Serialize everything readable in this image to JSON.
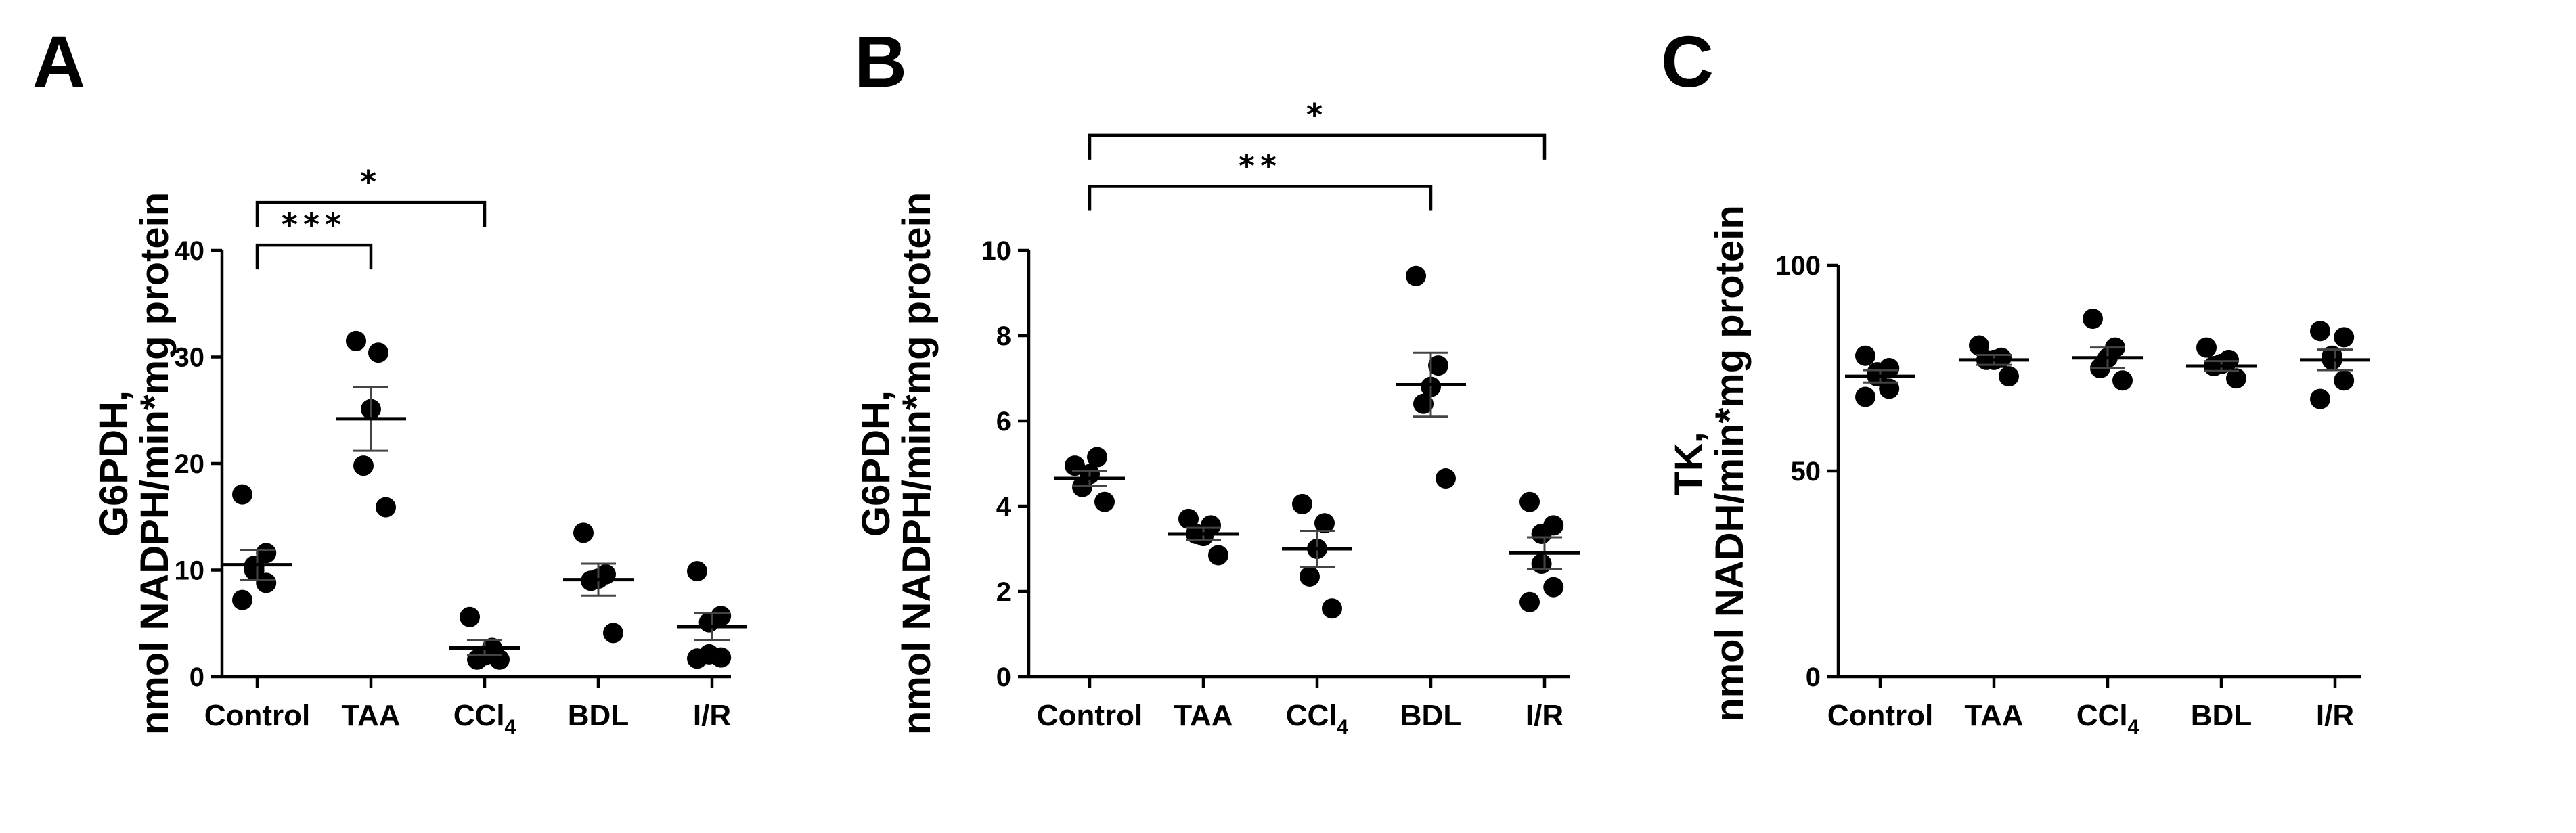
{
  "chart_data": [
    {
      "type": "scatter",
      "panel": "A",
      "ylabel_line1": "G6PDH,",
      "ylabel_line2": "nmol NADPH/min*mg protein",
      "ylim": [
        0,
        40
      ],
      "yticks": [
        0,
        10,
        20,
        30,
        40
      ],
      "categories": [
        {
          "name": "Control",
          "sub": ""
        },
        {
          "name": "TAA",
          "sub": ""
        },
        {
          "name": "CCl",
          "sub": "4"
        },
        {
          "name": "BDL",
          "sub": ""
        },
        {
          "name": "I/R",
          "sub": ""
        }
      ],
      "groups": [
        {
          "points": [
            17.1,
            11.6,
            10.4,
            10.0,
            8.8,
            7.2
          ],
          "mean": 10.5,
          "sem": 1.4
        },
        {
          "points": [
            31.5,
            30.4,
            25.1,
            19.8,
            15.9
          ],
          "mean": 24.2,
          "sem": 3.0
        },
        {
          "points": [
            5.6,
            2.7,
            2.0,
            1.6,
            1.6
          ],
          "mean": 2.7,
          "sem": 0.7
        },
        {
          "points": [
            13.5,
            9.6,
            9.2,
            9.0,
            4.1
          ],
          "mean": 9.1,
          "sem": 1.5
        },
        {
          "points": [
            9.9,
            5.7,
            5.1,
            2.1,
            1.8,
            1.7
          ],
          "mean": 4.7,
          "sem": 1.3
        }
      ],
      "significance": [
        {
          "from": 0,
          "to": 1,
          "label": "***",
          "level": 40.5
        },
        {
          "from": 0,
          "to": 2,
          "label": "*",
          "level": 44.5
        }
      ]
    },
    {
      "type": "scatter",
      "panel": "B",
      "ylabel_line1": "G6PDH,",
      "ylabel_line2": "nmol NADPH/min*mg protein",
      "ylim": [
        0,
        10
      ],
      "yticks": [
        0,
        2,
        4,
        6,
        8,
        10
      ],
      "categories": [
        {
          "name": "Control",
          "sub": ""
        },
        {
          "name": "TAA",
          "sub": ""
        },
        {
          "name": "CCl",
          "sub": "4"
        },
        {
          "name": "BDL",
          "sub": ""
        },
        {
          "name": "I/R",
          "sub": ""
        }
      ],
      "groups": [
        {
          "points": [
            4.95,
            5.15,
            4.75,
            4.45,
            4.1
          ],
          "mean": 4.65,
          "sem": 0.18
        },
        {
          "points": [
            3.7,
            3.55,
            3.3,
            3.35,
            2.85
          ],
          "mean": 3.35,
          "sem": 0.14
        },
        {
          "points": [
            4.05,
            3.6,
            3.0,
            2.35,
            1.6
          ],
          "mean": 3.0,
          "sem": 0.42
        },
        {
          "points": [
            9.4,
            7.3,
            6.8,
            6.4,
            4.65
          ],
          "mean": 6.85,
          "sem": 0.75
        },
        {
          "points": [
            4.1,
            3.55,
            3.35,
            2.65,
            2.1,
            1.75
          ],
          "mean": 2.9,
          "sem": 0.37
        }
      ],
      "significance": [
        {
          "from": 0,
          "to": 3,
          "label": "**",
          "level": 11.5
        },
        {
          "from": 0,
          "to": 4,
          "label": "*",
          "level": 12.7
        }
      ]
    },
    {
      "type": "scatter",
      "panel": "C",
      "ylabel_line1": "TK,",
      "ylabel_line2": "nmol NADH/min*mg protein",
      "ylim": [
        0,
        100
      ],
      "yticks": [
        0,
        50,
        100
      ],
      "categories": [
        {
          "name": "Control",
          "sub": ""
        },
        {
          "name": "TAA",
          "sub": ""
        },
        {
          "name": "CCl",
          "sub": "4"
        },
        {
          "name": "BDL",
          "sub": ""
        },
        {
          "name": "I/R",
          "sub": ""
        }
      ],
      "groups": [
        {
          "points": [
            78.0,
            75.0,
            74.0,
            73.0,
            70.0,
            68.0
          ],
          "mean": 73.0,
          "sem": 1.5
        },
        {
          "points": [
            80.5,
            77.5,
            77.0,
            77.0,
            73.0
          ],
          "mean": 77.0,
          "sem": 1.2
        },
        {
          "points": [
            87.0,
            80.0,
            77.5,
            75.0,
            72.0
          ],
          "mean": 77.5,
          "sem": 2.5
        },
        {
          "points": [
            80.0,
            77.0,
            76.0,
            75.5,
            72.5
          ],
          "mean": 75.5,
          "sem": 1.2
        },
        {
          "points": [
            84.0,
            82.5,
            78.0,
            77.0,
            72.0,
            67.5
          ],
          "mean": 77.0,
          "sem": 2.5
        }
      ],
      "significance": []
    }
  ]
}
